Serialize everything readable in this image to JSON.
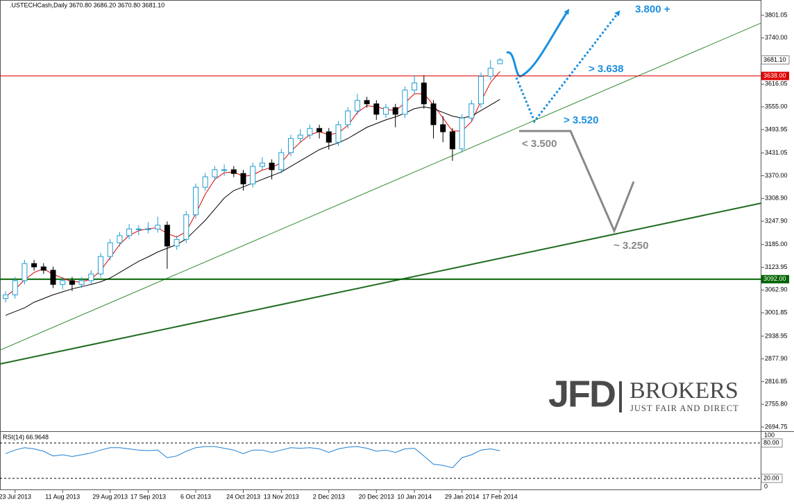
{
  "chart_data": {
    "type": "candlestick",
    "title": ".USTECHCash,Daily  3670.80 3686.20 3670.80 3681.10",
    "categories": [
      null,
      "23 Jul 2013",
      null,
      null,
      null,
      null,
      "11 Aug 2013",
      null,
      null,
      null,
      null,
      "29 Aug 2013",
      null,
      null,
      null,
      "17 Sep 2013",
      null,
      null,
      null,
      null,
      "6 Oct 2013",
      null,
      null,
      null,
      null,
      "24 Oct 2013",
      null,
      null,
      null,
      "13 Nov 2013",
      null,
      null,
      null,
      null,
      "2 Dec 2013",
      null,
      null,
      null,
      null,
      "20 Dec 2013",
      null,
      null,
      null,
      "10 Jan 2014",
      null,
      null,
      null,
      null,
      "29 Jan 2014",
      null,
      null,
      null,
      "17 Feb 2014"
    ],
    "open": [
      3040,
      3050,
      3088,
      3134,
      3125,
      3116,
      3078,
      3088,
      3078,
      3088,
      3106,
      3153,
      3190,
      3209,
      3227,
      3227,
      3227,
      3237,
      3181,
      3199,
      3265,
      3339,
      3367,
      3386,
      3386,
      3376,
      3348,
      3395,
      3404,
      3386,
      3432,
      3470,
      3479,
      3497,
      3488,
      3460,
      3507,
      3544,
      3572,
      3563,
      3535,
      3553,
      3535,
      3600,
      3619,
      3563,
      3507,
      3488,
      3442,
      3525,
      3563,
      3637,
      3670.8
    ],
    "high": [
      3060,
      3098,
      3144,
      3144,
      3135,
      3126,
      3098,
      3098,
      3098,
      3116,
      3163,
      3200,
      3219,
      3240,
      3237,
      3245,
      3260,
      3247,
      3209,
      3275,
      3349,
      3377,
      3396,
      3400,
      3396,
      3386,
      3405,
      3420,
      3414,
      3442,
      3480,
      3495,
      3507,
      3507,
      3498,
      3517,
      3554,
      3590,
      3582,
      3573,
      3563,
      3563,
      3610,
      3640,
      3640,
      3573,
      3530,
      3498,
      3535,
      3573,
      3647,
      3680,
      3686.2
    ],
    "low": [
      3030,
      3040,
      3078,
      3115,
      3106,
      3068,
      3065,
      3060,
      3068,
      3078,
      3096,
      3143,
      3180,
      3199,
      3210,
      3215,
      3217,
      3120,
      3171,
      3189,
      3255,
      3329,
      3357,
      3370,
      3366,
      3330,
      3338,
      3385,
      3360,
      3376,
      3422,
      3460,
      3469,
      3470,
      3440,
      3450,
      3497,
      3534,
      3553,
      3520,
      3525,
      3500,
      3525,
      3590,
      3550,
      3470,
      3460,
      3410,
      3432,
      3515,
      3553,
      3627,
      3670.8
    ],
    "close": [
      3050,
      3088,
      3134,
      3125,
      3116,
      3078,
      3088,
      3078,
      3088,
      3106,
      3153,
      3190,
      3209,
      3227,
      3227,
      3227,
      3237,
      3181,
      3199,
      3265,
      3339,
      3367,
      3386,
      3386,
      3376,
      3348,
      3395,
      3404,
      3386,
      3432,
      3470,
      3479,
      3497,
      3488,
      3460,
      3507,
      3544,
      3572,
      3563,
      3535,
      3553,
      3535,
      3600,
      3619,
      3563,
      3507,
      3488,
      3442,
      3525,
      3563,
      3637,
      3659,
      3681.1
    ],
    "up_color": "#1e9bd0",
    "down_color": "#000000",
    "series": [
      {
        "color": "#e00000",
        "values": [
          3045,
          3065,
          3090,
          3110,
          3120,
          3105,
          3095,
          3085,
          3085,
          3092,
          3115,
          3150,
          3185,
          3210,
          3222,
          3228,
          3230,
          3215,
          3205,
          3220,
          3268,
          3320,
          3360,
          3378,
          3380,
          3368,
          3372,
          3385,
          3392,
          3405,
          3435,
          3460,
          3480,
          3488,
          3480,
          3485,
          3505,
          3540,
          3558,
          3555,
          3548,
          3545,
          3565,
          3590,
          3590,
          3560,
          3525,
          3490,
          3490,
          3515,
          3570,
          3620,
          3650
        ]
      },
      {
        "color": "#000000",
        "values": [
          2995,
          3005,
          3015,
          3030,
          3040,
          3050,
          3058,
          3066,
          3072,
          3078,
          3085,
          3095,
          3110,
          3125,
          3140,
          3152,
          3165,
          3175,
          3185,
          3200,
          3225,
          3250,
          3280,
          3310,
          3330,
          3340,
          3350,
          3360,
          3370,
          3380,
          3395,
          3410,
          3425,
          3440,
          3450,
          3458,
          3470,
          3485,
          3500,
          3510,
          3520,
          3528,
          3538,
          3550,
          3555,
          3550,
          3540,
          3530,
          3525,
          3530,
          3545,
          3560,
          3575
        ]
      }
    ],
    "ylim": [
      2683.6,
      3842
    ],
    "yticks": [
      3801.05,
      {
        "value": 3740,
        "label": "3740.00"
      },
      3616.05,
      {
        "value": 3555,
        "label": "3555.00"
      },
      3493.95,
      3431.05,
      {
        "value": 3370,
        "label": "3370.00"
      },
      {
        "value": 3308.9,
        "label": "3308.90"
      },
      {
        "value": 3247.9,
        "label": "3247.90"
      },
      {
        "value": 3185,
        "label": "3185.00"
      },
      3123.95,
      {
        "value": 3062.9,
        "label": "3062.90"
      },
      3001.85,
      2938.95,
      {
        "value": 2877.9,
        "label": "2877.90"
      },
      2816.85,
      {
        "value": 2755.8,
        "label": "2755.80"
      },
      2694.75
    ],
    "last_price": {
      "value": 3681.1,
      "label": "3681.10"
    },
    "hlines": [
      {
        "value": 3638,
        "label": "3638.00",
        "color": "#e00000"
      },
      {
        "value": 3092,
        "label": "3092.00",
        "color": "#006400"
      }
    ],
    "trendlines": [
      {
        "from": 2901.4,
        "to": 3780.5,
        "color": "#2e8b2e",
        "width": 1
      },
      {
        "from": 2864.2,
        "to": 3296.3,
        "color": "#1f6b1f",
        "width": 2
      }
    ],
    "annotations": [
      "3.800 +",
      "> 3.638",
      "> 3.520",
      "< 3.500",
      "~ 3.250"
    ],
    "rsi": {
      "label": "RSI(14) 66.9648",
      "color": "#1e7fd0",
      "ylim": [
        0,
        100
      ],
      "ticks": [
        100,
        0
      ],
      "levels": [
        {
          "value": 80,
          "label": "80.00"
        },
        {
          "value": 20,
          "label": "20.00"
        }
      ],
      "values": [
        62,
        68,
        72,
        70,
        66,
        58,
        60,
        57,
        60,
        63,
        68,
        72,
        72,
        70,
        68,
        67,
        68,
        55,
        58,
        66,
        72,
        74,
        74,
        71,
        68,
        62,
        68,
        68,
        64,
        68,
        72,
        71,
        72,
        70,
        64,
        70,
        73,
        74,
        71,
        66,
        68,
        64,
        70,
        71,
        58,
        44,
        42,
        38,
        55,
        60,
        68,
        70,
        66.9648
      ]
    },
    "logo": {
      "main": "JFD",
      "brand": "BROKERS",
      "tagline": "JUST FAIR AND DIRECT"
    }
  }
}
